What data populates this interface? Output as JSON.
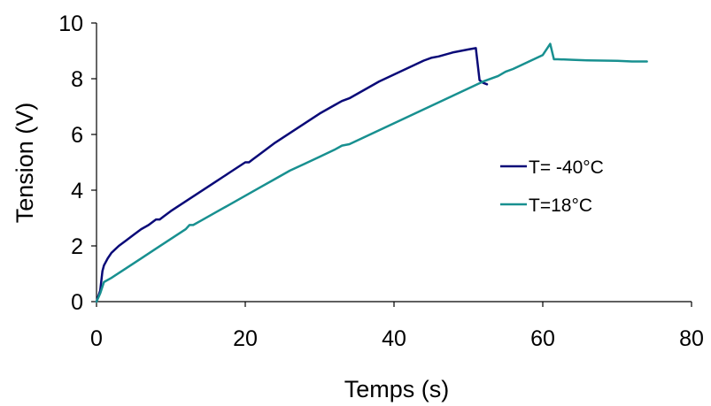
{
  "chart_data": {
    "type": "line",
    "title": "",
    "xlabel": "Temps (s)",
    "ylabel": "Tension (V)",
    "xlim": [
      0,
      80
    ],
    "ylim": [
      0,
      10
    ],
    "x_ticks": [
      0,
      20,
      40,
      60,
      80
    ],
    "y_ticks": [
      0,
      2,
      4,
      6,
      8,
      10
    ],
    "x_tick_labels": [
      "0",
      "20",
      "40",
      "60",
      "80"
    ],
    "y_tick_labels": [
      "0",
      "2",
      "4",
      "6",
      "8",
      "10"
    ],
    "grid": false,
    "legend_position": "right",
    "series": [
      {
        "name": "T= -40°C",
        "color": "#0a0a78",
        "x": [
          0,
          0.5,
          0.8,
          1,
          1.5,
          2,
          3,
          4,
          5,
          6,
          7,
          8,
          8.5,
          9,
          10,
          12,
          14,
          16,
          18,
          20,
          20.5,
          21,
          22,
          24,
          26,
          28,
          30,
          32,
          33,
          34,
          36,
          38,
          40,
          42,
          44,
          45,
          46,
          48,
          50,
          51,
          51.5,
          52,
          52.5
        ],
        "y": [
          0,
          0.4,
          1.1,
          1.3,
          1.55,
          1.75,
          2.0,
          2.2,
          2.4,
          2.6,
          2.75,
          2.95,
          2.95,
          3.05,
          3.25,
          3.6,
          3.95,
          4.3,
          4.65,
          5.0,
          5.0,
          5.1,
          5.3,
          5.7,
          6.05,
          6.4,
          6.75,
          7.05,
          7.2,
          7.3,
          7.6,
          7.9,
          8.15,
          8.4,
          8.65,
          8.75,
          8.8,
          8.95,
          9.05,
          9.1,
          7.95,
          7.85,
          7.8
        ]
      },
      {
        "name": "T=18°C",
        "color": "#189090",
        "x": [
          0,
          0.5,
          1,
          2,
          4,
          6,
          8,
          10,
          12,
          12.5,
          13,
          14,
          16,
          18,
          20,
          22,
          24,
          26,
          28,
          30,
          32,
          33,
          34,
          36,
          38,
          40,
          42,
          44,
          46,
          48,
          50,
          52,
          54,
          55,
          56,
          58,
          60,
          61,
          61.5,
          62,
          64,
          66,
          68,
          70,
          72,
          74
        ],
        "y": [
          0,
          0.3,
          0.7,
          0.85,
          1.2,
          1.55,
          1.9,
          2.25,
          2.6,
          2.75,
          2.75,
          2.9,
          3.2,
          3.5,
          3.8,
          4.1,
          4.4,
          4.7,
          4.95,
          5.2,
          5.45,
          5.6,
          5.65,
          5.9,
          6.15,
          6.4,
          6.65,
          6.9,
          7.15,
          7.4,
          7.65,
          7.9,
          8.1,
          8.25,
          8.35,
          8.6,
          8.85,
          9.25,
          8.7,
          8.7,
          8.68,
          8.66,
          8.65,
          8.64,
          8.62,
          8.62
        ]
      }
    ]
  }
}
